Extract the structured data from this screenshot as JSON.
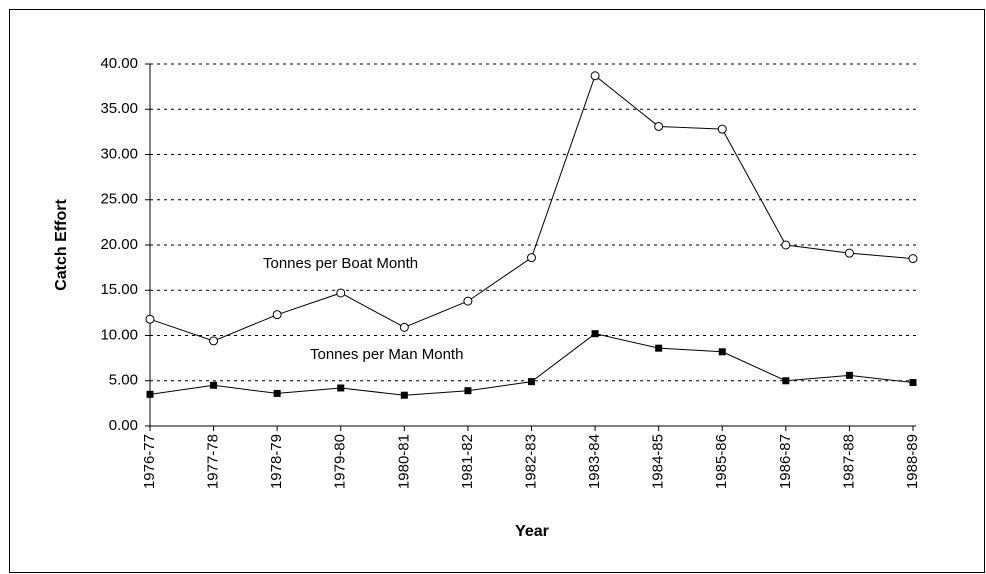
{
  "chart_data": {
    "type": "line",
    "x_label": "Year",
    "y_label": "Catch Effort",
    "categories": [
      "1976-77",
      "1977-78",
      "1978-79",
      "1979-80",
      "1980-81",
      "1981-82",
      "1982-83",
      "1983-84",
      "1984-85",
      "1985-86",
      "1986-87",
      "1987-88",
      "1988-89"
    ],
    "series": [
      {
        "name": "Tonnes per Boat Month",
        "color": "#000000",
        "marker": "circle",
        "values": [
          11.8,
          9.4,
          12.3,
          14.7,
          10.9,
          13.8,
          18.6,
          38.7,
          33.1,
          32.8,
          20.0,
          19.1,
          18.5
        ]
      },
      {
        "name": "Tonnes per Man Month",
        "color": "#000000",
        "marker": "square",
        "values": [
          3.5,
          4.5,
          3.6,
          4.2,
          3.4,
          3.9,
          4.9,
          10.2,
          8.6,
          8.2,
          5.0,
          5.6,
          4.8
        ]
      }
    ],
    "ylim": [
      0,
      40
    ],
    "yticks": [
      {
        "value": 0,
        "label": "0.00"
      },
      {
        "value": 5,
        "label": "5.00"
      },
      {
        "value": 10,
        "label": "10.00"
      },
      {
        "value": 15,
        "label": "15.00"
      },
      {
        "value": 20,
        "label": "20.00"
      },
      {
        "value": 25,
        "label": "25.00"
      },
      {
        "value": 30,
        "label": "30.00"
      },
      {
        "value": 35,
        "label": "35.00"
      },
      {
        "value": 40,
        "label": "40.00"
      }
    ],
    "grid": true
  }
}
